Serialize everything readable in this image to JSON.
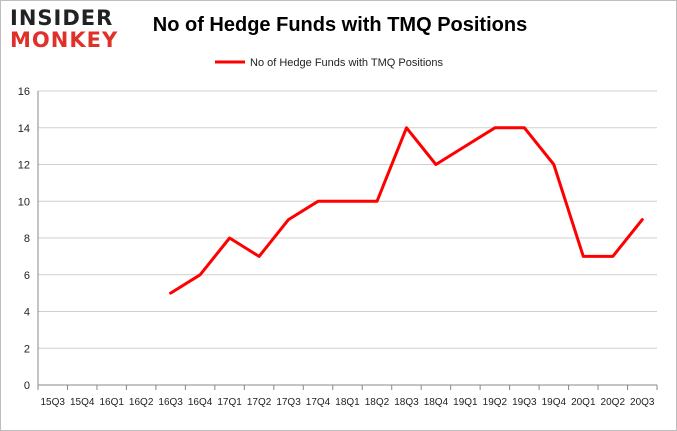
{
  "brand": {
    "logo_line1": "INSIDER",
    "logo_line2": "MONKEY"
  },
  "chart_data": {
    "type": "line",
    "title": "No of Hedge Funds with TMQ Positions",
    "xlabel": "",
    "ylabel": "",
    "ylim": [
      0,
      16
    ],
    "yticks": [
      0,
      2,
      4,
      6,
      8,
      10,
      12,
      14,
      16
    ],
    "grid": true,
    "legend_position": "top-center",
    "categories": [
      "15Q3",
      "15Q4",
      "16Q1",
      "16Q2",
      "16Q3",
      "16Q4",
      "17Q1",
      "17Q2",
      "17Q3",
      "17Q4",
      "18Q1",
      "18Q2",
      "18Q3",
      "18Q4",
      "19Q1",
      "19Q2",
      "19Q3",
      "19Q4",
      "20Q1",
      "20Q2",
      "20Q3"
    ],
    "series": [
      {
        "name": "No of Hedge Funds with TMQ Positions",
        "color": "#ff0000",
        "values": [
          null,
          null,
          null,
          null,
          5,
          6,
          8,
          7,
          9,
          10,
          10,
          10,
          14,
          12,
          13,
          14,
          14,
          12,
          7,
          7,
          9
        ]
      }
    ]
  }
}
